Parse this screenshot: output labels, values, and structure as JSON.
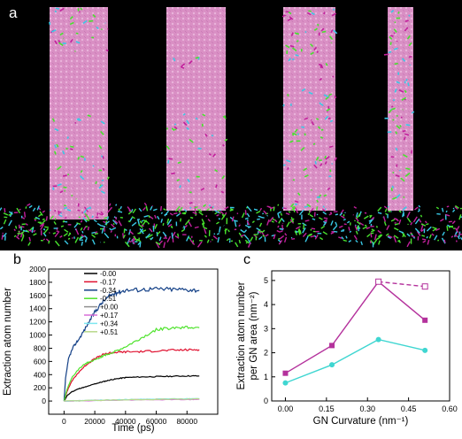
{
  "panel_a": {
    "label": "a",
    "colors": {
      "background": "#000000",
      "graphene_tube": "#d98fc4",
      "molecules_green": "#47e22d",
      "molecules_cyan": "#39c9e6",
      "molecules_magenta": "#c21f9c"
    }
  },
  "chart_data": [
    {
      "panel": "b",
      "type": "line",
      "xlabel": "Time (ps)",
      "ylabel": "Extraction atom number",
      "xlim": [
        -10000,
        100000
      ],
      "ylim": [
        -200,
        2000
      ],
      "xticks": [
        0,
        20000,
        40000,
        60000,
        80000
      ],
      "yticks": [
        0,
        200,
        400,
        600,
        800,
        1000,
        1200,
        1400,
        1600,
        1800,
        2000
      ],
      "legend_position": "top-center",
      "series": [
        {
          "name": "-0.00",
          "color": "#000000",
          "x": [
            0,
            2000,
            5000,
            10000,
            15000,
            20000,
            25000,
            30000,
            35000,
            40000,
            50000,
            60000,
            70000,
            80000,
            88000
          ],
          "y": [
            0,
            80,
            140,
            190,
            220,
            260,
            290,
            320,
            340,
            355,
            365,
            370,
            375,
            380,
            380
          ]
        },
        {
          "name": "-0.17",
          "color": "#e0102f",
          "x": [
            0,
            2000,
            5000,
            10000,
            15000,
            20000,
            25000,
            30000,
            35000,
            40000,
            50000,
            60000,
            70000,
            80000,
            88000
          ],
          "y": [
            0,
            150,
            300,
            450,
            560,
            640,
            700,
            730,
            740,
            745,
            750,
            760,
            770,
            775,
            780
          ]
        },
        {
          "name": "-0.34",
          "color": "#123f86",
          "x": [
            0,
            1000,
            3000,
            6000,
            10000,
            15000,
            20000,
            25000,
            30000,
            35000,
            40000,
            50000,
            60000,
            70000,
            80000,
            88000
          ],
          "y": [
            0,
            350,
            650,
            820,
            950,
            1150,
            1350,
            1500,
            1600,
            1650,
            1680,
            1690,
            1700,
            1695,
            1690,
            1680
          ]
        },
        {
          "name": "-0.51",
          "color": "#4ee32c",
          "x": [
            0,
            2000,
            5000,
            10000,
            15000,
            20000,
            25000,
            30000,
            40000,
            50000,
            60000,
            70000,
            80000,
            88000
          ],
          "y": [
            0,
            180,
            350,
            500,
            580,
            620,
            680,
            720,
            820,
            950,
            1080,
            1110,
            1120,
            1110
          ]
        },
        {
          "name": "+0.00",
          "color": "#8f8f8f",
          "x": [
            0,
            20000,
            40000,
            60000,
            80000,
            88000
          ],
          "y": [
            0,
            10,
            20,
            25,
            28,
            30
          ]
        },
        {
          "name": "+0.17",
          "color": "#d96fd9",
          "x": [
            0,
            20000,
            40000,
            60000,
            80000,
            88000
          ],
          "y": [
            0,
            8,
            15,
            20,
            22,
            25
          ]
        },
        {
          "name": "+0.34",
          "color": "#7ee7f0",
          "x": [
            0,
            20000,
            40000,
            60000,
            80000,
            88000
          ],
          "y": [
            0,
            12,
            22,
            30,
            35,
            38
          ]
        },
        {
          "name": "+0.51",
          "color": "#b8d98a",
          "x": [
            0,
            20000,
            40000,
            60000,
            80000,
            88000
          ],
          "y": [
            0,
            10,
            18,
            25,
            30,
            32
          ]
        }
      ]
    },
    {
      "panel": "c",
      "type": "line",
      "xlabel": "GN Curvature (nm⁻¹)",
      "ylabel": "Extraction atom number",
      "ylabel2": "per GN area (nm⁻²)",
      "xlim": [
        -0.05,
        0.6
      ],
      "ylim": [
        0,
        5.4
      ],
      "xticks": [
        "0.00",
        "0.15",
        "0.30",
        "0.45",
        "0.60"
      ],
      "yticks": [
        "0",
        "1",
        "2",
        "3",
        "4",
        "5"
      ],
      "series": [
        {
          "color": "#b4319c",
          "marker": "square",
          "x": [
            0.0,
            0.17,
            0.34,
            0.51
          ],
          "y": [
            1.15,
            2.3,
            4.95,
            3.35
          ]
        },
        {
          "color": "#b4319c",
          "marker": "open-square",
          "dashed": true,
          "x": [
            0.34,
            0.51
          ],
          "y": [
            4.95,
            4.75
          ]
        },
        {
          "color": "#3fd6d1",
          "marker": "circle",
          "x": [
            0.0,
            0.17,
            0.34,
            0.51
          ],
          "y": [
            0.75,
            1.5,
            2.55,
            2.1
          ]
        }
      ]
    }
  ],
  "panel_b": {
    "label": "b"
  },
  "panel_c": {
    "label": "c"
  }
}
